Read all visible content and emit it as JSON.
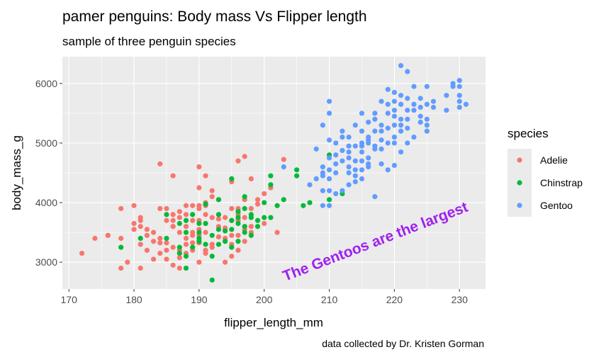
{
  "chart_data": {
    "type": "scatter",
    "title": "pamer penguins: Body mass Vs Flipper length",
    "subtitle": "sample of three penguin species",
    "xlabel": "flipper_length_mm",
    "ylabel": "body_mass_g",
    "caption": "data collected by Dr. Kristen Gorman",
    "xlim": [
      169,
      234
    ],
    "ylim": [
      2550,
      6450
    ],
    "x_ticks": [
      170,
      180,
      190,
      200,
      210,
      220,
      230
    ],
    "y_ticks": [
      3000,
      4000,
      5000,
      6000
    ],
    "grid": true,
    "legend_title": "species",
    "legend_position": "right",
    "annotation": {
      "text": "The Gentoos are the largest",
      "x": 203,
      "y": 2750,
      "angle_deg": -21,
      "color": "#a020f0",
      "clipped": true
    },
    "series": [
      {
        "name": "Adelie",
        "color": "#f8766d",
        "points": [
          [
            172,
            3150
          ],
          [
            174,
            3400
          ],
          [
            176,
            3450
          ],
          [
            178,
            2900
          ],
          [
            178,
            3400
          ],
          [
            178,
            3900
          ],
          [
            179,
            3000
          ],
          [
            180,
            3550
          ],
          [
            180,
            3950
          ],
          [
            181,
            2900
          ],
          [
            181,
            3300
          ],
          [
            181,
            3600
          ],
          [
            181,
            3750
          ],
          [
            182,
            3200
          ],
          [
            182,
            3450
          ],
          [
            183,
            3050
          ],
          [
            184,
            3900
          ],
          [
            184,
            4650
          ],
          [
            184,
            3400
          ],
          [
            185,
            3700
          ],
          [
            185,
            3050
          ],
          [
            186,
            3600
          ],
          [
            186,
            2950
          ],
          [
            186,
            4450
          ],
          [
            186,
            3800
          ],
          [
            187,
            3200
          ],
          [
            187,
            3500
          ],
          [
            187,
            2900
          ],
          [
            187,
            3150
          ],
          [
            188,
            3300
          ],
          [
            188,
            3600
          ],
          [
            188,
            3950
          ],
          [
            189,
            3500
          ],
          [
            189,
            3200
          ],
          [
            189,
            3950
          ],
          [
            190,
            3000
          ],
          [
            190,
            3550
          ],
          [
            190,
            3700
          ],
          [
            190,
            4600
          ],
          [
            190,
            3900
          ],
          [
            191,
            3200
          ],
          [
            191,
            3500
          ],
          [
            191,
            3650
          ],
          [
            191,
            3800
          ],
          [
            192,
            3750
          ],
          [
            192,
            3300
          ],
          [
            193,
            3600
          ],
          [
            193,
            3800
          ],
          [
            193,
            4050
          ],
          [
            194,
            3000
          ],
          [
            194,
            3400
          ],
          [
            194,
            3750
          ],
          [
            195,
            3700
          ],
          [
            195,
            3300
          ],
          [
            195,
            3900
          ],
          [
            195,
            4400
          ],
          [
            196,
            3450
          ],
          [
            196,
            3800
          ],
          [
            196,
            4700
          ],
          [
            197,
            3750
          ],
          [
            197,
            4775
          ],
          [
            197,
            4050
          ],
          [
            198,
            3500
          ],
          [
            198,
            3900
          ],
          [
            198,
            4400
          ],
          [
            199,
            4050
          ],
          [
            200,
            4150
          ],
          [
            200,
            3650
          ],
          [
            201,
            4250
          ],
          [
            202,
            3500
          ],
          [
            203,
            4725
          ],
          [
            181,
            3700
          ],
          [
            182,
            3550
          ],
          [
            183,
            3500
          ],
          [
            184,
            3325
          ],
          [
            185,
            3325
          ],
          [
            186,
            3250
          ],
          [
            187,
            3750
          ],
          [
            188,
            3800
          ],
          [
            189,
            3700
          ],
          [
            190,
            3450
          ],
          [
            191,
            4000
          ],
          [
            192,
            4200
          ],
          [
            193,
            3425
          ],
          [
            194,
            3550
          ],
          [
            195,
            3100
          ],
          [
            196,
            3900
          ],
          [
            197,
            3350
          ],
          [
            198,
            3600
          ],
          [
            199,
            3975
          ],
          [
            186,
            3700
          ],
          [
            187,
            3850
          ],
          [
            188,
            3400
          ],
          [
            189,
            3450
          ],
          [
            190,
            3325
          ],
          [
            191,
            3950
          ],
          [
            192,
            3250
          ],
          [
            193,
            3725
          ],
          [
            194,
            3575
          ],
          [
            195,
            3450
          ],
          [
            176,
            3450
          ],
          [
            180,
            3650
          ],
          [
            183,
            3350
          ],
          [
            185,
            3200
          ],
          [
            187,
            3075
          ],
          [
            188,
            3150
          ],
          [
            191,
            3150
          ],
          [
            192,
            4100
          ],
          [
            190,
            3950
          ],
          [
            196,
            3200
          ],
          [
            197,
            3550
          ],
          [
            184,
            3150
          ],
          [
            185,
            3900
          ],
          [
            186,
            3600
          ],
          [
            189,
            3325
          ],
          [
            190,
            4250
          ],
          [
            191,
            4450
          ],
          [
            195,
            4350
          ],
          [
            196,
            3700
          ]
        ]
      },
      {
        "name": "Chinstrap",
        "color": "#00ba38",
        "points": [
          [
            178,
            3250
          ],
          [
            181,
            3400
          ],
          [
            185,
            3400
          ],
          [
            185,
            3800
          ],
          [
            187,
            3150
          ],
          [
            187,
            3650
          ],
          [
            187,
            3250
          ],
          [
            188,
            3100
          ],
          [
            188,
            3700
          ],
          [
            188,
            2900
          ],
          [
            189,
            3800
          ],
          [
            190,
            3500
          ],
          [
            190,
            3400
          ],
          [
            190,
            3350
          ],
          [
            190,
            3650
          ],
          [
            191,
            3300
          ],
          [
            191,
            3650
          ],
          [
            192,
            2700
          ],
          [
            192,
            3450
          ],
          [
            193,
            3300
          ],
          [
            193,
            3550
          ],
          [
            193,
            3800
          ],
          [
            193,
            4050
          ],
          [
            194,
            3350
          ],
          [
            195,
            3550
          ],
          [
            195,
            3700
          ],
          [
            195,
            4400
          ],
          [
            195,
            3250
          ],
          [
            196,
            3750
          ],
          [
            196,
            3850
          ],
          [
            196,
            3350
          ],
          [
            197,
            3900
          ],
          [
            197,
            4100
          ],
          [
            197,
            3600
          ],
          [
            197,
            3500
          ],
          [
            198,
            3750
          ],
          [
            198,
            3800
          ],
          [
            199,
            3700
          ],
          [
            199,
            3600
          ],
          [
            200,
            3750
          ],
          [
            201,
            3750
          ],
          [
            201,
            4300
          ],
          [
            201,
            4450
          ],
          [
            202,
            3950
          ],
          [
            203,
            4050
          ],
          [
            205,
            4550
          ],
          [
            205,
            4450
          ],
          [
            206,
            3950
          ],
          [
            207,
            4000
          ],
          [
            210,
            4800
          ],
          [
            210,
            4050
          ],
          [
            212,
            4150
          ],
          [
            192,
            3100
          ],
          [
            194,
            3525
          ],
          [
            196,
            3650
          ],
          [
            198,
            3450
          ],
          [
            200,
            4000
          ],
          [
            188,
            3500
          ],
          [
            189,
            3250
          ],
          [
            191,
            3975
          ]
        ]
      },
      {
        "name": "Gentoo",
        "color": "#619cff",
        "points": [
          [
            203,
            4600
          ],
          [
            207,
            4300
          ],
          [
            208,
            4400
          ],
          [
            208,
            4900
          ],
          [
            209,
            3950
          ],
          [
            209,
            4200
          ],
          [
            209,
            4450
          ],
          [
            209,
            4600
          ],
          [
            209,
            5300
          ],
          [
            210,
            4400
          ],
          [
            210,
            4750
          ],
          [
            210,
            3950
          ],
          [
            210,
            4200
          ],
          [
            210,
            5050
          ],
          [
            210,
            5500
          ],
          [
            210,
            5700
          ],
          [
            211,
            4500
          ],
          [
            211,
            4150
          ],
          [
            211,
            5000
          ],
          [
            212,
            4700
          ],
          [
            212,
            4200
          ],
          [
            212,
            4875
          ],
          [
            213,
            4600
          ],
          [
            213,
            4500
          ],
          [
            213,
            4950
          ],
          [
            213,
            4850
          ],
          [
            213,
            5100
          ],
          [
            214,
            4350
          ],
          [
            214,
            4700
          ],
          [
            214,
            4950
          ],
          [
            214,
            5300
          ],
          [
            214,
            4450
          ],
          [
            215,
            4700
          ],
          [
            215,
            5000
          ],
          [
            215,
            5200
          ],
          [
            215,
            5500
          ],
          [
            215,
            4850
          ],
          [
            215,
            4550
          ],
          [
            216,
            4600
          ],
          [
            216,
            5000
          ],
          [
            216,
            5100
          ],
          [
            216,
            4650
          ],
          [
            216,
            5350
          ],
          [
            217,
            4900
          ],
          [
            217,
            5200
          ],
          [
            217,
            5500
          ],
          [
            217,
            4100
          ],
          [
            218,
            5200
          ],
          [
            218,
            5300
          ],
          [
            218,
            4900
          ],
          [
            218,
            5700
          ],
          [
            219,
            5000
          ],
          [
            219,
            5250
          ],
          [
            219,
            5650
          ],
          [
            219,
            4550
          ],
          [
            219,
            5500
          ],
          [
            220,
            5100
          ],
          [
            220,
            5300
          ],
          [
            220,
            5450
          ],
          [
            220,
            5700
          ],
          [
            220,
            5850
          ],
          [
            220,
            5000
          ],
          [
            220,
            4625
          ],
          [
            221,
            5200
          ],
          [
            221,
            5300
          ],
          [
            221,
            5650
          ],
          [
            221,
            6300
          ],
          [
            221,
            4850
          ],
          [
            221,
            5800
          ],
          [
            222,
            5250
          ],
          [
            222,
            5400
          ],
          [
            222,
            5550
          ],
          [
            222,
            6200
          ],
          [
            222,
            5750
          ],
          [
            223,
            5550
          ],
          [
            223,
            5650
          ],
          [
            223,
            5950
          ],
          [
            224,
            5350
          ],
          [
            224,
            5600
          ],
          [
            224,
            5750
          ],
          [
            225,
            5400
          ],
          [
            225,
            5650
          ],
          [
            225,
            5950
          ],
          [
            225,
            5200
          ],
          [
            226,
            5700
          ],
          [
            228,
            5800
          ],
          [
            228,
            5550
          ],
          [
            229,
            5950
          ],
          [
            229,
            6000
          ],
          [
            230,
            5600
          ],
          [
            230,
            5700
          ],
          [
            230,
            5800
          ],
          [
            230,
            6050
          ],
          [
            230,
            5950
          ],
          [
            231,
            5650
          ],
          [
            212,
            5200
          ],
          [
            211,
            4800
          ],
          [
            213,
            4750
          ],
          [
            215,
            4400
          ],
          [
            216,
            5050
          ],
          [
            217,
            5400
          ],
          [
            218,
            5050
          ],
          [
            219,
            5900
          ],
          [
            220,
            5550
          ],
          [
            221,
            5400
          ],
          [
            222,
            5000
          ],
          [
            223,
            5100
          ],
          [
            224,
            5450
          ],
          [
            225,
            5300
          ],
          [
            226,
            5600
          ],
          [
            214,
            4550
          ],
          [
            215,
            4950
          ],
          [
            216,
            4750
          ],
          [
            217,
            4950
          ],
          [
            218,
            4650
          ],
          [
            213,
            4300
          ],
          [
            212,
            5100
          ],
          [
            210,
            4550
          ],
          [
            211,
            4650
          ],
          [
            209,
            4500
          ]
        ]
      }
    ]
  }
}
